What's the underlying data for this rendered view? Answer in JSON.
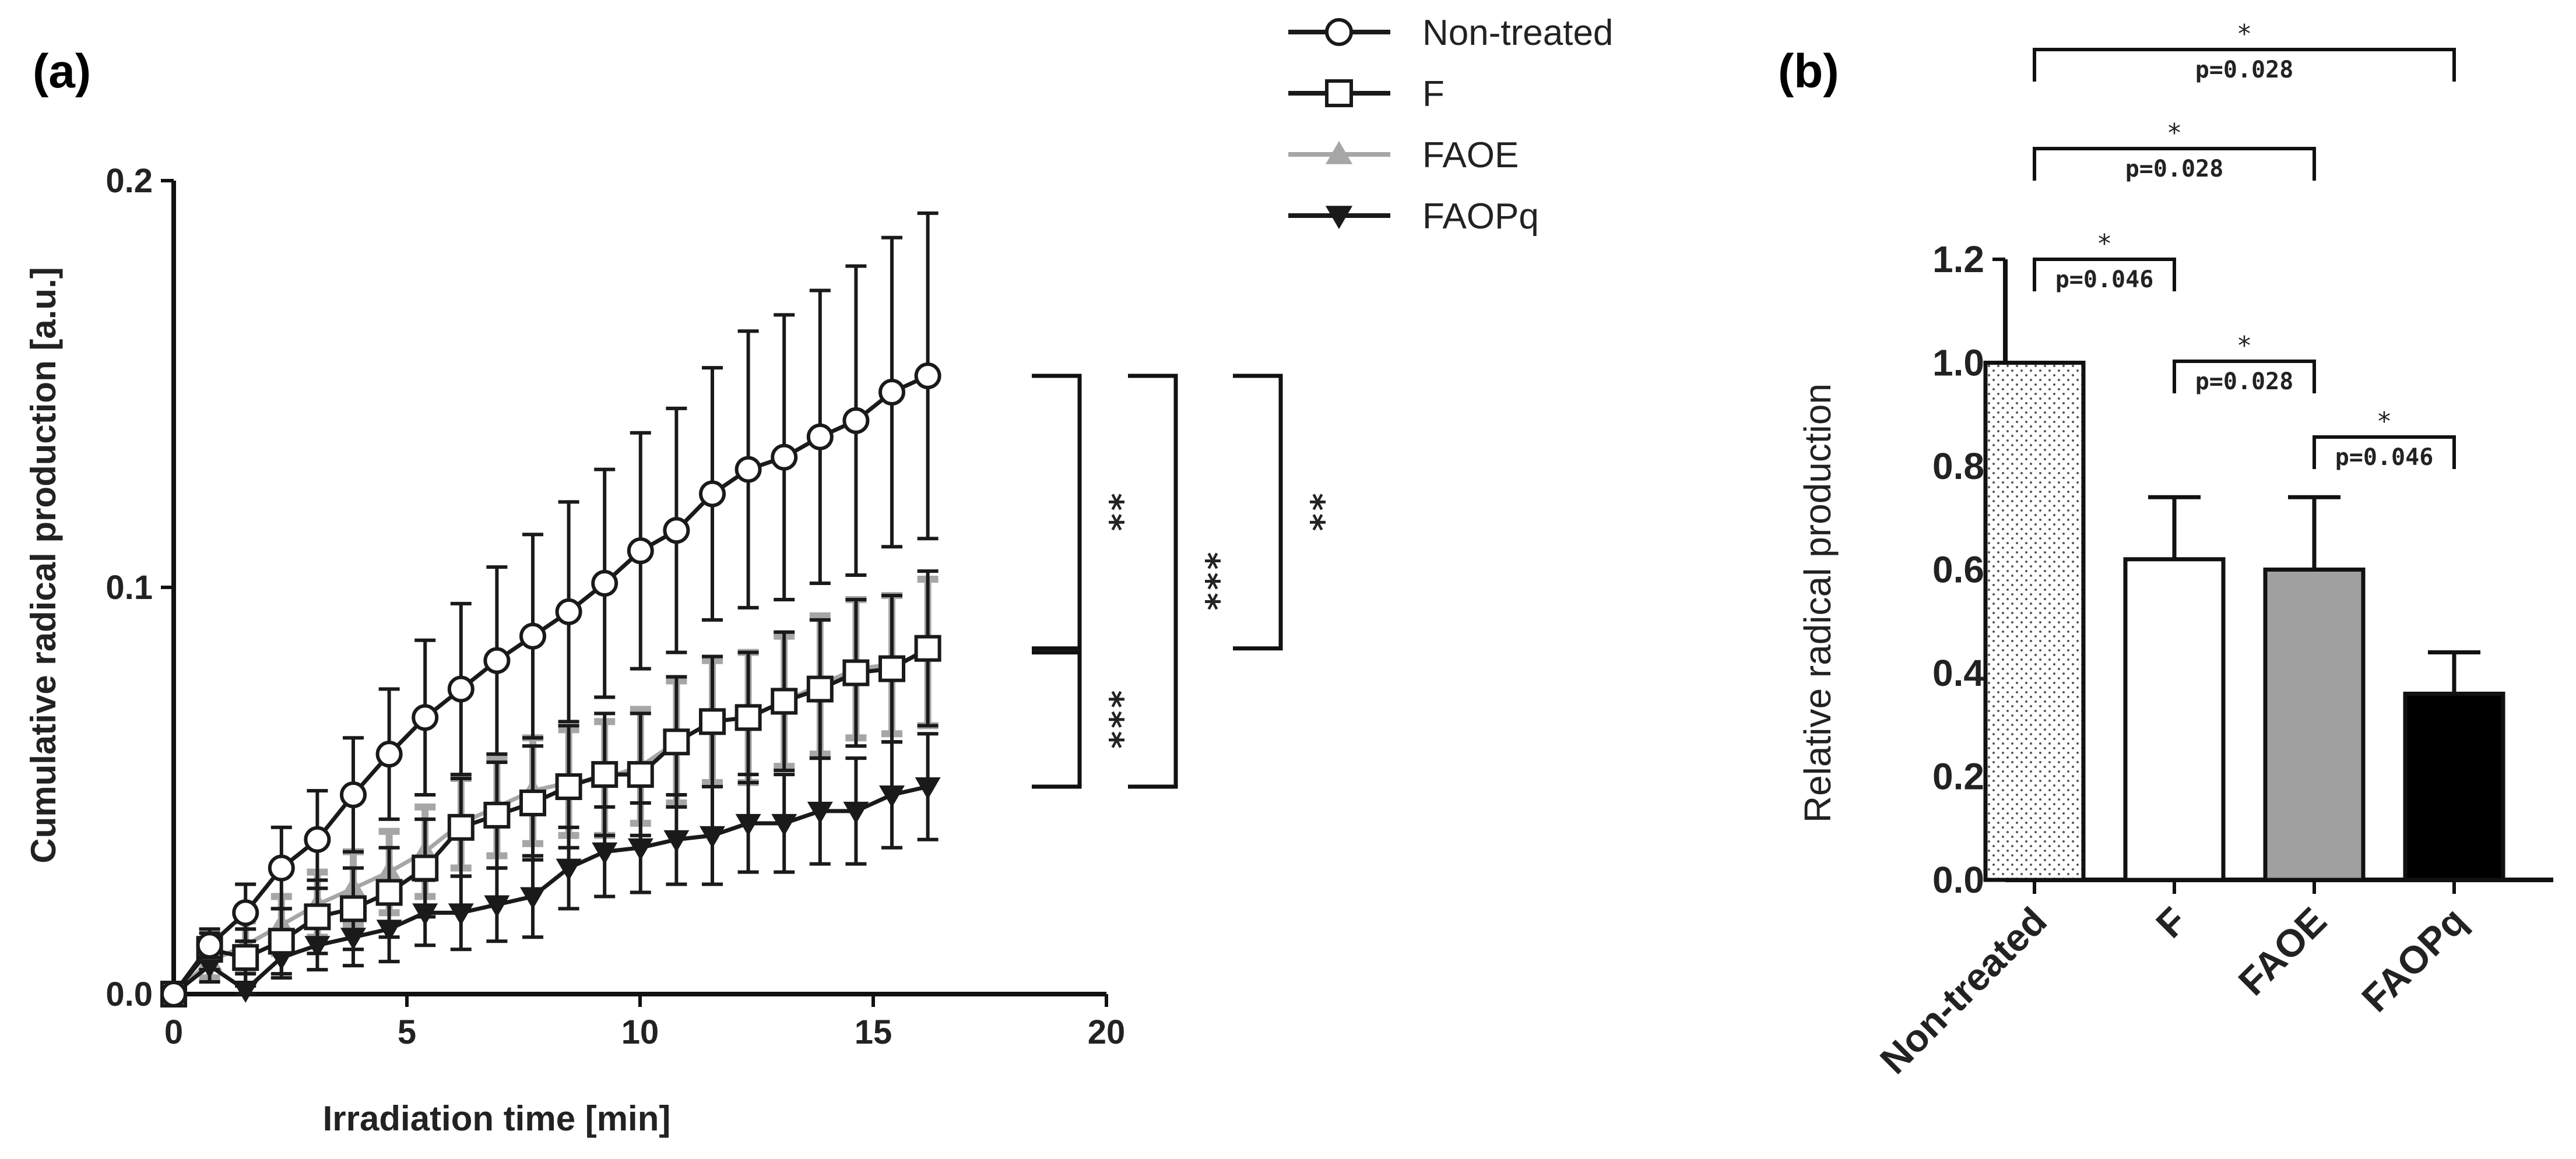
{
  "panel_a": {
    "label": "(a)",
    "chart_data": {
      "type": "line",
      "xlabel": "Irradiation time [min]",
      "ylabel": "Cumulative radical production [a.u.]",
      "xlim": [
        0,
        20
      ],
      "ylim": [
        0,
        0.2
      ],
      "xticks": [
        0,
        5,
        10,
        15,
        20
      ],
      "yticks": [
        0.0,
        0.1,
        0.2
      ],
      "xtick_labels": [
        "0",
        "5",
        "10",
        "15",
        "20"
      ],
      "ytick_labels": [
        "0.0",
        "0.1",
        "0.2"
      ],
      "x": [
        0,
        0.77,
        1.54,
        2.31,
        3.08,
        3.85,
        4.62,
        5.39,
        6.16,
        6.93,
        7.7,
        8.47,
        9.24,
        10.01,
        10.78,
        11.55,
        12.32,
        13.09,
        13.86,
        14.63,
        15.4,
        16.17
      ],
      "series": [
        {
          "name": "Non-treated",
          "marker": "open-circle",
          "color": "#1a1a1a",
          "values": [
            0.0,
            0.012,
            0.02,
            0.031,
            0.038,
            0.049,
            0.059,
            0.068,
            0.075,
            0.082,
            0.088,
            0.094,
            0.101,
            0.109,
            0.114,
            0.123,
            0.129,
            0.132,
            0.137,
            0.141,
            0.148,
            0.152
          ],
          "errors": [
            0.0,
            0.003,
            0.007,
            0.01,
            0.012,
            0.014,
            0.016,
            0.019,
            0.021,
            0.023,
            0.025,
            0.027,
            0.028,
            0.029,
            0.03,
            0.031,
            0.034,
            0.035,
            0.036,
            0.038,
            0.038,
            0.04
          ]
        },
        {
          "name": "F",
          "marker": "open-square",
          "color": "#1a1a1a",
          "values": [
            0.0,
            0.011,
            0.009,
            0.013,
            0.019,
            0.021,
            0.025,
            0.031,
            0.041,
            0.044,
            0.047,
            0.051,
            0.054,
            0.054,
            0.062,
            0.067,
            0.068,
            0.072,
            0.075,
            0.079,
            0.08,
            0.085
          ],
          "errors": [
            0.0,
            0.005,
            0.007,
            0.008,
            0.009,
            0.01,
            0.011,
            0.012,
            0.012,
            0.013,
            0.014,
            0.015,
            0.015,
            0.015,
            0.016,
            0.016,
            0.016,
            0.017,
            0.017,
            0.018,
            0.018,
            0.019
          ]
        },
        {
          "name": "FAOE",
          "marker": "filled-triangle-up",
          "color": "#a6a6a6",
          "values": [
            0.0,
            0.008,
            0.012,
            0.017,
            0.022,
            0.026,
            0.03,
            0.035,
            0.042,
            0.046,
            0.05,
            0.052,
            0.053,
            0.056,
            0.062,
            0.067,
            0.068,
            0.072,
            0.076,
            0.08,
            0.081,
            0.084
          ],
          "errors": [
            0.0,
            0.004,
            0.006,
            0.007,
            0.008,
            0.009,
            0.01,
            0.011,
            0.011,
            0.012,
            0.013,
            0.013,
            0.014,
            0.014,
            0.015,
            0.015,
            0.016,
            0.016,
            0.017,
            0.017,
            0.017,
            0.018
          ]
        },
        {
          "name": "FAOPq",
          "marker": "filled-triangle-down",
          "color": "#1a1a1a",
          "values": [
            0.0,
            0.007,
            0.001,
            0.009,
            0.012,
            0.014,
            0.016,
            0.02,
            0.02,
            0.022,
            0.024,
            0.031,
            0.035,
            0.036,
            0.038,
            0.039,
            0.042,
            0.042,
            0.045,
            0.045,
            0.049,
            0.051
          ],
          "errors": [
            0.0,
            0.004,
            0.004,
            0.005,
            0.006,
            0.007,
            0.008,
            0.008,
            0.009,
            0.009,
            0.01,
            0.01,
            0.011,
            0.011,
            0.011,
            0.012,
            0.012,
            0.012,
            0.013,
            0.013,
            0.013,
            0.013
          ]
        }
      ],
      "legend": {
        "placement": "top-right",
        "entries": [
          "Non-treated",
          "F",
          "FAOE",
          "FAOPq"
        ]
      },
      "significance": [
        {
          "text": "**",
          "y_top": 0.152,
          "y_bottom": 0.085,
          "level": 1
        },
        {
          "text": "***",
          "y_top": 0.084,
          "y_bottom": 0.051,
          "level": 1
        },
        {
          "text": "***",
          "y_top": 0.152,
          "y_bottom": 0.051,
          "level": 2
        },
        {
          "text": "**",
          "y_top": 0.152,
          "y_bottom": 0.085,
          "level": 3
        }
      ]
    }
  },
  "panel_b": {
    "label": "(b)",
    "chart_data": {
      "type": "bar",
      "categories": [
        "Non-treated",
        "F",
        "FAOE",
        "FAOPq"
      ],
      "values": [
        1.0,
        0.62,
        0.6,
        0.36
      ],
      "errors": [
        0.0,
        0.12,
        0.14,
        0.08
      ],
      "fills": [
        "dotted",
        "#ffffff",
        "#a0a0a0",
        "#000000"
      ],
      "ylabel": "Relative radical production",
      "ylim": [
        0,
        1.2
      ],
      "yticks": [
        0.0,
        0.2,
        0.4,
        0.6,
        0.8,
        1.0,
        1.2
      ],
      "ytick_labels": [
        "0.0",
        "0.2",
        "0.4",
        "0.6",
        "0.8",
        "1.0",
        "1.2"
      ],
      "comparisons": [
        {
          "from": 0,
          "to": 3,
          "star": "*",
          "p": "p=0.028",
          "level": 4
        },
        {
          "from": 0,
          "to": 2,
          "star": "*",
          "p": "p=0.028",
          "level": 3
        },
        {
          "from": 0,
          "to": 1,
          "star": "*",
          "p": "p=0.046",
          "level": 2
        },
        {
          "from": 1,
          "to": 2,
          "star": "*",
          "p": "p=0.028",
          "level": 1
        },
        {
          "from": 2,
          "to": 3,
          "star": "*",
          "p": "p=0.046",
          "level": 0
        }
      ]
    }
  }
}
